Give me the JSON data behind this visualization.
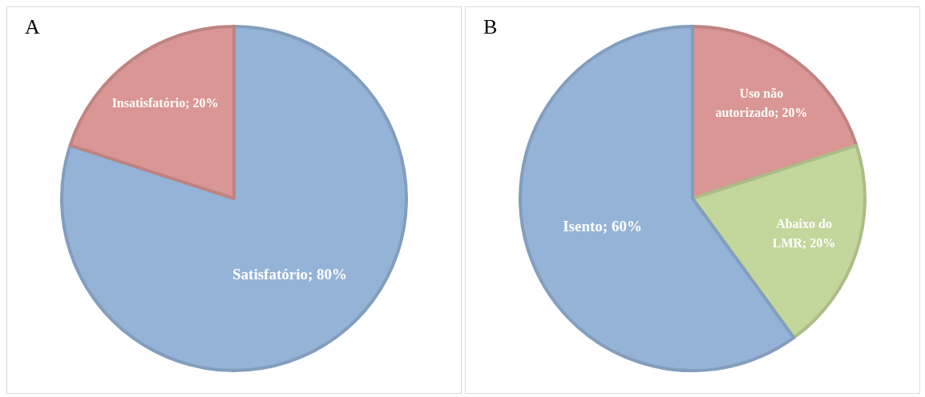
{
  "chart_data": [
    {
      "type": "pie",
      "title": "A",
      "categories": [
        "Satisfatório",
        "Insatisfatório"
      ],
      "values": [
        80,
        20
      ],
      "colors": [
        "#95b3d7",
        "#d99694"
      ],
      "value_labels": [
        "80%",
        "20%"
      ],
      "legend": false
    },
    {
      "type": "pie",
      "title": "B",
      "categories": [
        "Uso não autorizado",
        "Abaixo do LMR",
        "Isento"
      ],
      "values": [
        20,
        20,
        60
      ],
      "colors": [
        "#d99694",
        "#c3d69b",
        "#95b3d7"
      ],
      "value_labels": [
        "20%",
        "20%",
        "60%"
      ],
      "legend": false
    }
  ]
}
